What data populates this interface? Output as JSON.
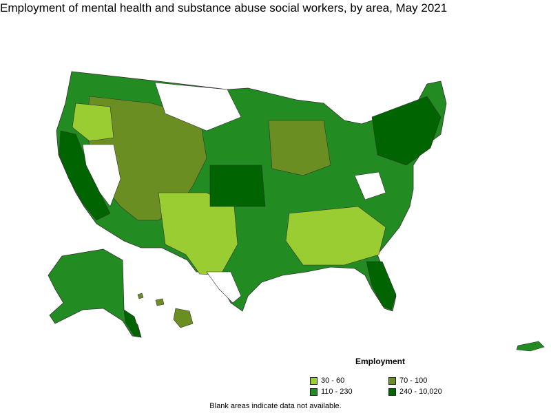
{
  "title": "Employment of mental health and substance abuse social workers, by area, May 2021",
  "legend": {
    "title": "Employment",
    "items": [
      {
        "label": "30 - 60",
        "color": "#9acd32"
      },
      {
        "label": "70 - 100",
        "color": "#6b8e23"
      },
      {
        "label": "110 - 230",
        "color": "#228b22"
      },
      {
        "label": "240 - 10,020",
        "color": "#006400"
      }
    ]
  },
  "footnote": "Blank areas indicate data not available."
}
